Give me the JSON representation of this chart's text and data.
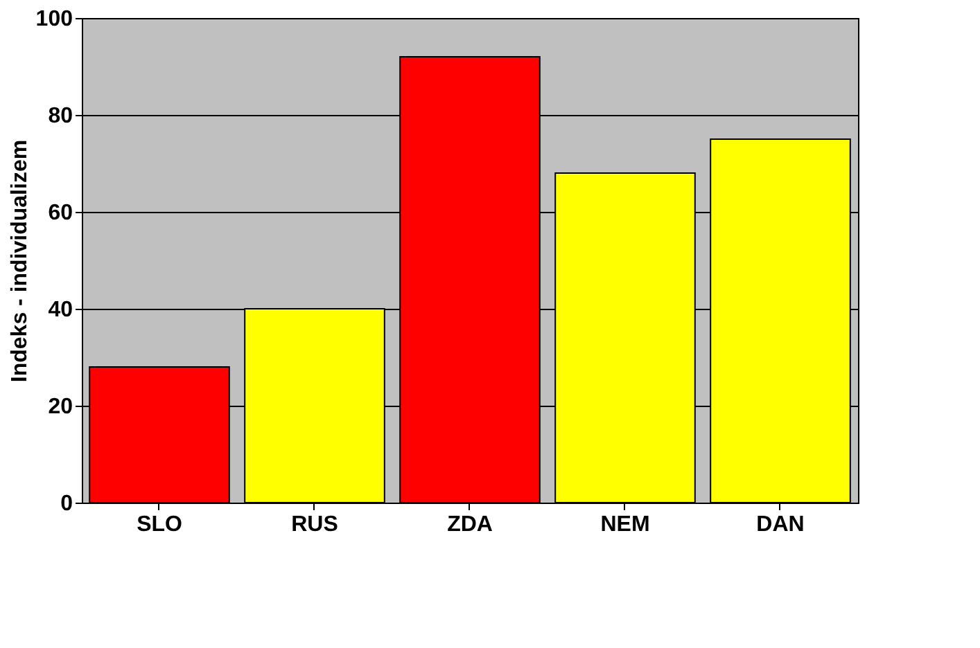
{
  "chart_data": {
    "type": "bar",
    "ylabel": "Indeks - individualizem",
    "categories": [
      "SLO",
      "RUS",
      "ZDA",
      "NEM",
      "DAN"
    ],
    "values": [
      28,
      40,
      92,
      68,
      75
    ],
    "colors": [
      "#ff0000",
      "#ffff00",
      "#ff0000",
      "#ffff00",
      "#ffff00"
    ],
    "ylim": [
      0,
      100
    ],
    "yticks": [
      0,
      20,
      40,
      60,
      80,
      100
    ],
    "grid": "y"
  }
}
